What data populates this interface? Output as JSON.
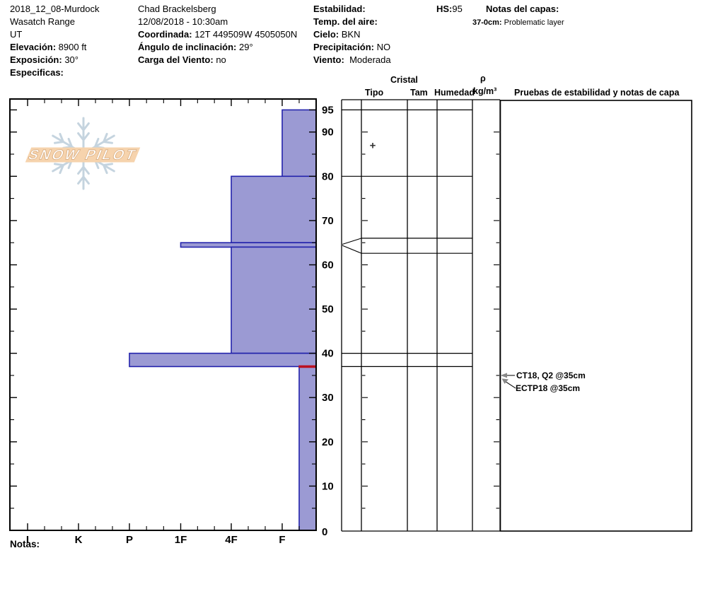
{
  "header": {
    "pit_name": "2018_12_08-Murdock",
    "range": "Wasatch Range",
    "state": "UT",
    "elevation_label": "Elevación:",
    "elevation_value": "8900 ft",
    "aspect_label": "Exposición:",
    "aspect_value": "30°",
    "specifics_label": "Especificas:",
    "observer": "Chad Brackelsberg",
    "datetime": "12/08/2018 - 10:30am",
    "coordinates_label": "Coordinada:",
    "coordinates_value": "12T 449509W 4505050N",
    "slope_angle_label": "Ángulo de inclinación:",
    "slope_angle_value": "29°",
    "wind_loading_label": "Carga del Viento:",
    "wind_loading_value": "no",
    "stability_label": "Estabilidad:",
    "air_temp_label": "Temp. del aire:",
    "sky_label": "Cielo:",
    "sky_value": "BKN",
    "precip_label": "Precipitación:",
    "precip_value": "NO",
    "wind_label": "Viento:",
    "wind_value": "Moderada",
    "hs_label": "HS:",
    "hs_value": "95",
    "layer_notes_label": "Notas del capas:",
    "layer_note_range": "37-0cm:",
    "layer_note_text": "Problematic layer"
  },
  "logo": {
    "text": "SNOW PILOT"
  },
  "chart_data": {
    "type": "bar",
    "orientation": "horizontal",
    "description": "Snow pit hardness profile: depth in cm vs hand hardness (harder bars extend further left)",
    "x_categories": [
      "I",
      "K",
      "P",
      "1F",
      "4F",
      "F"
    ],
    "y_ticks_labeled": [
      95,
      90,
      80,
      70,
      60,
      50,
      40,
      30,
      20,
      10,
      0
    ],
    "ylim": [
      0,
      95
    ],
    "total_depth_hs_cm": 95,
    "layers": [
      {
        "top_cm": 95,
        "bottom_cm": 80,
        "hardness": "F"
      },
      {
        "top_cm": 80,
        "bottom_cm": 65,
        "hardness": "4F"
      },
      {
        "top_cm": 65,
        "bottom_cm": 64,
        "hardness": "1F"
      },
      {
        "top_cm": 64,
        "bottom_cm": 40,
        "hardness": "4F"
      },
      {
        "top_cm": 40,
        "bottom_cm": 37,
        "hardness": "P"
      },
      {
        "top_cm": 37,
        "bottom_cm": 0,
        "hardness": "F-"
      }
    ],
    "problem_layer_depth_cm": 37,
    "grain_symbol": {
      "symbol": "+",
      "depth_cm": 87
    },
    "colors": {
      "bar_fill": "#9b9ad3",
      "bar_border": "#2323ac",
      "problem_layer_line": "#bb1122",
      "logo_banner": "#f6d3ad",
      "logo_banner_text_outline": "#dcb288",
      "logo_flake": "#c5d4df"
    }
  },
  "profile_table": {
    "cristal_header": "Cristal",
    "tipo_header": "Tipo",
    "tam_header": "Tam",
    "humedad_header": "Humedad",
    "rho_header": "ρ",
    "rho_units": "kg/m³",
    "tests_header": "Pruebas de estabilidad y notas de capa",
    "row_boundaries_cm": [
      95,
      80,
      66,
      62.6,
      40,
      37
    ],
    "expanded_layer": {
      "apex_cm": 64.5,
      "drawn_top_cm": 66,
      "drawn_bottom_cm": 62.6
    },
    "annotations": [
      {
        "text": "CT18, Q2 @35cm",
        "depth_cm": 35
      },
      {
        "text": "ECTP18 @35cm",
        "depth_cm": 35
      }
    ]
  },
  "footer": {
    "notes_label": "Notas:"
  }
}
